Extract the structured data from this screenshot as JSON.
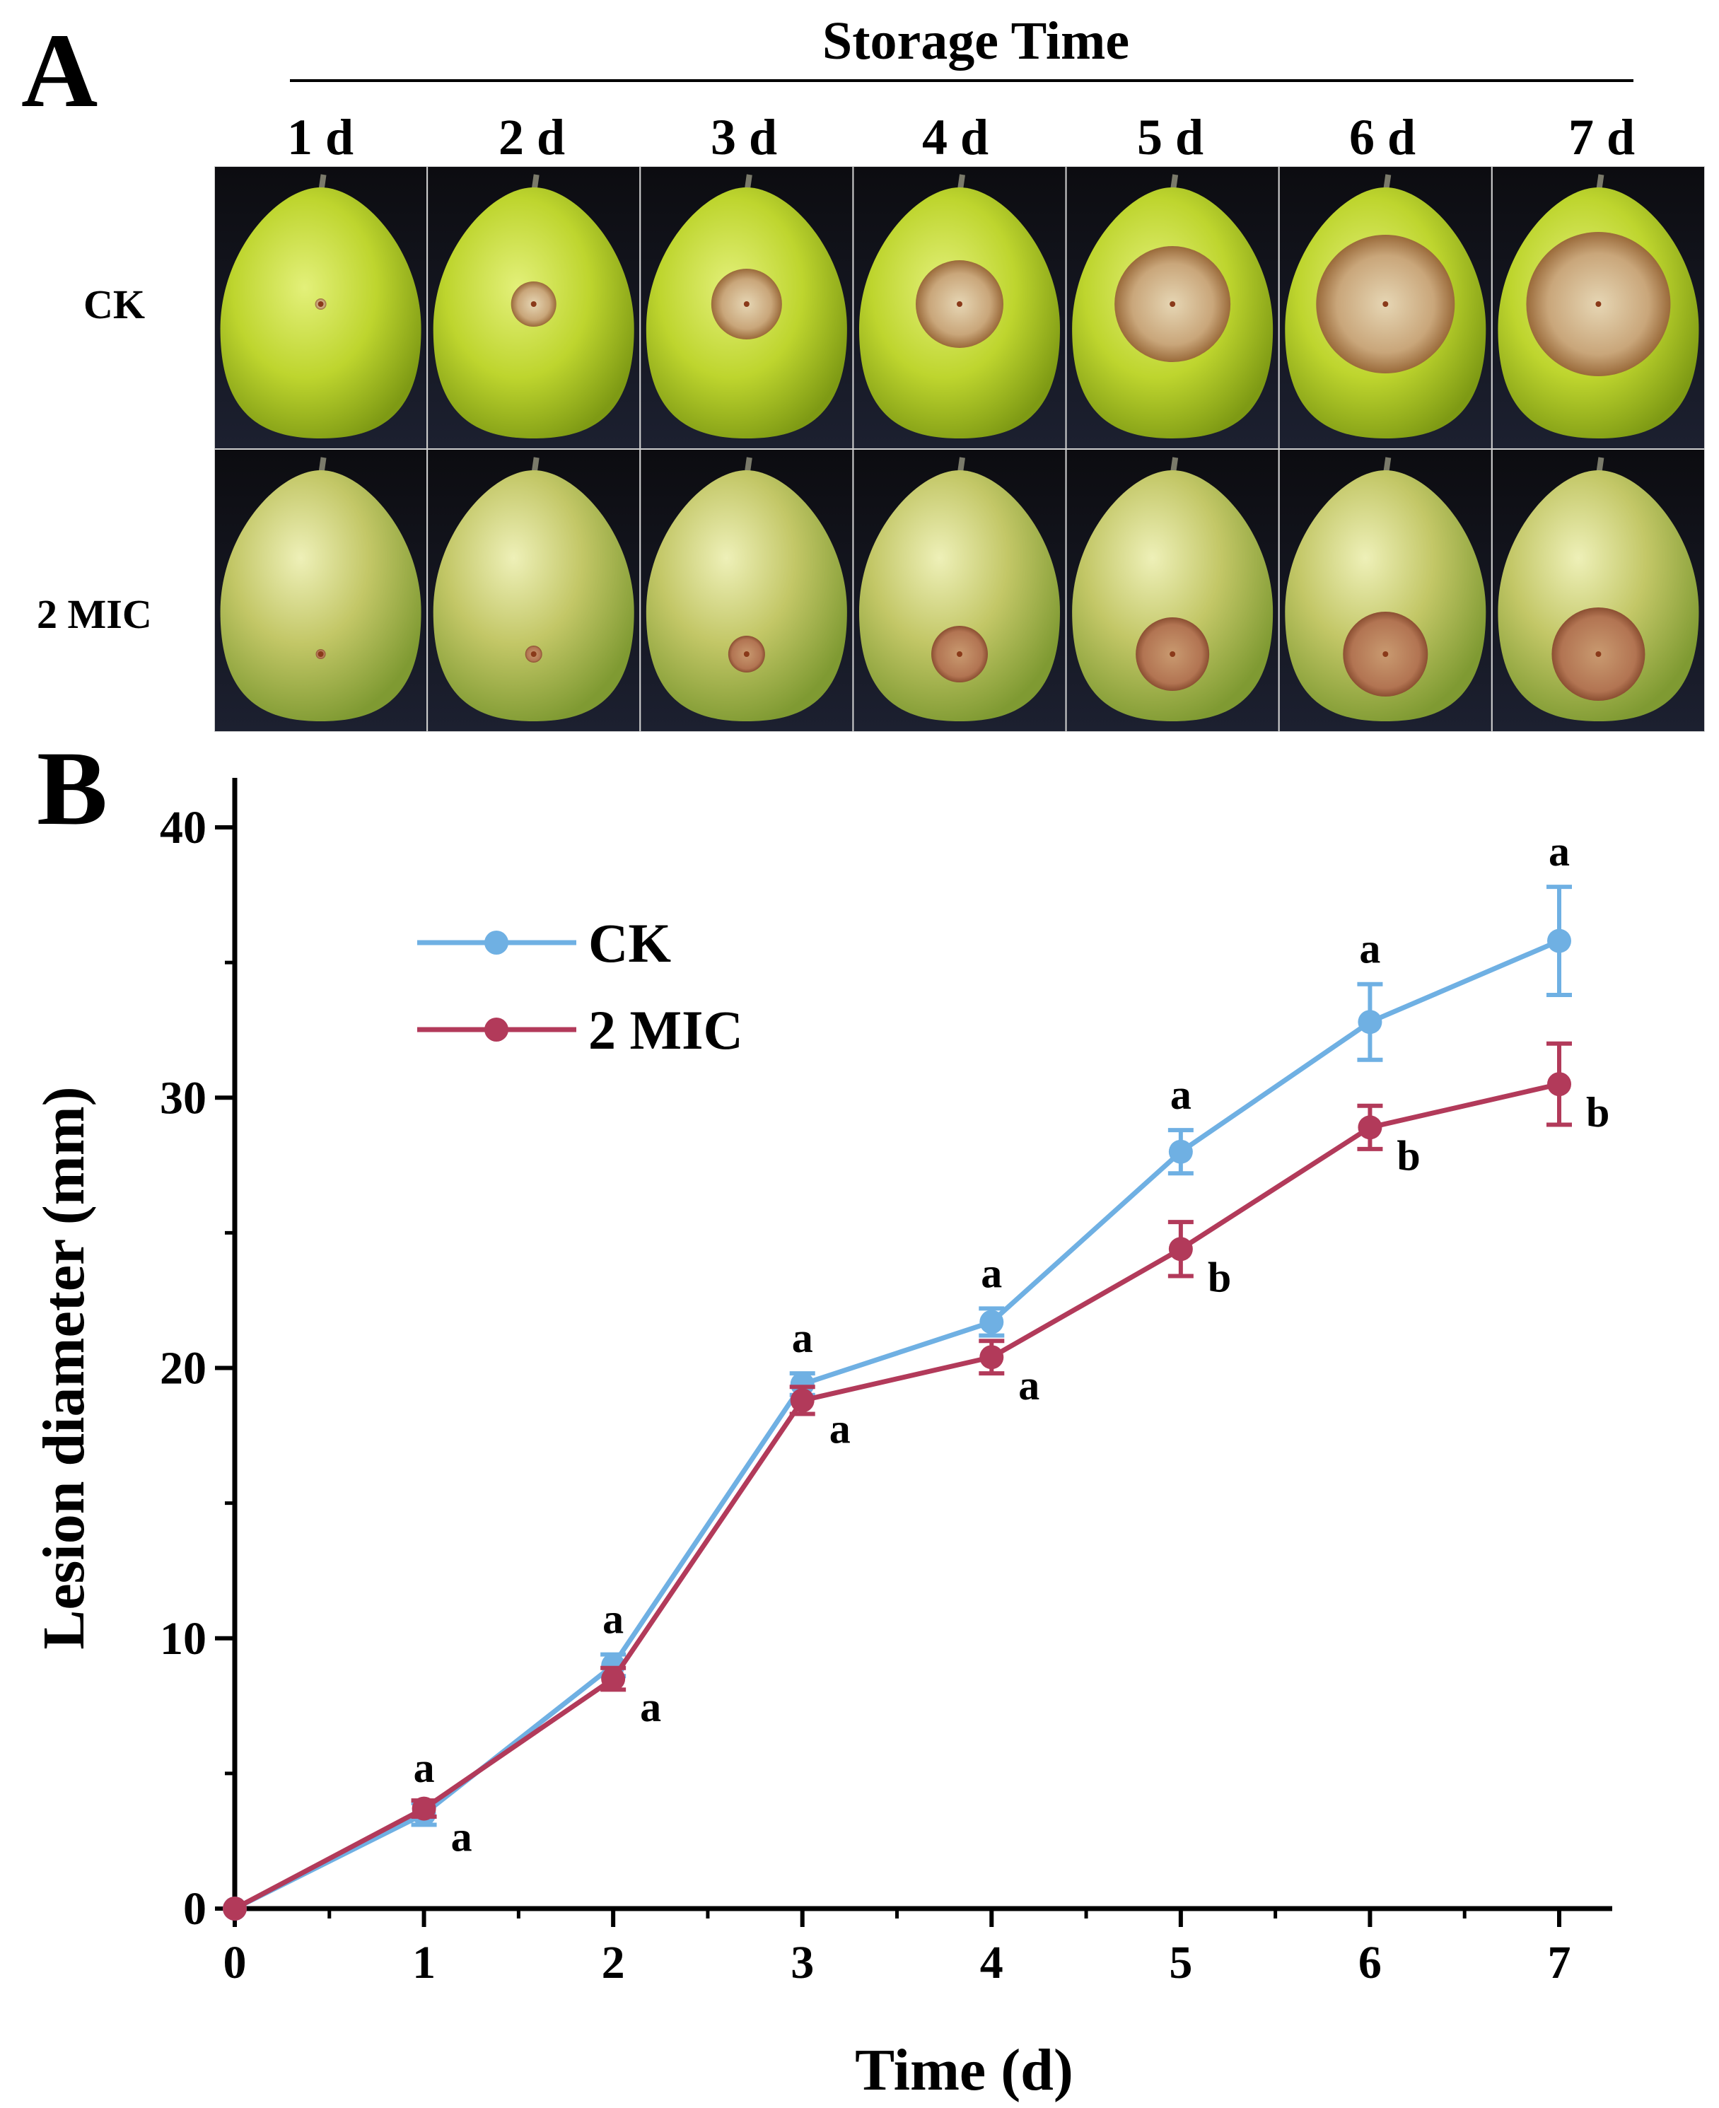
{
  "figure": {
    "panel_a_label": "A",
    "panel_b_label": "B",
    "storage_time_title": "Storage Time",
    "day_labels": [
      "1 d",
      "2 d",
      "3 d",
      "4 d",
      "5 d",
      "6 d",
      "7 d"
    ],
    "row_labels": [
      "CK",
      "2 MIC"
    ]
  },
  "chart_data": {
    "type": "line",
    "xlabel": "Time (d)",
    "ylabel": "Lesion diameter (mm)",
    "x": [
      0,
      1,
      2,
      3,
      4,
      5,
      6,
      7
    ],
    "xlim": [
      0,
      7
    ],
    "ylim": [
      0,
      40
    ],
    "xticks": [
      "0",
      "1",
      "2",
      "3",
      "4",
      "5",
      "6",
      "7"
    ],
    "yticks": [
      "0",
      "10",
      "20",
      "30",
      "40"
    ],
    "legend_position": "top-left",
    "series": [
      {
        "name": "CK",
        "color": "#6fb0e3",
        "marker": "circle",
        "values": [
          0,
          3.5,
          9.0,
          19.4,
          21.7,
          28.0,
          32.8,
          35.8
        ],
        "errors": [
          0,
          0.4,
          0.4,
          0.4,
          0.5,
          0.8,
          1.4,
          2.0
        ],
        "labels": [
          "",
          "a",
          "a",
          "a",
          "a",
          "a",
          "a",
          "a"
        ]
      },
      {
        "name": "2 MIC",
        "color": "#b23a5a",
        "marker": "circle",
        "values": [
          0,
          3.7,
          8.5,
          18.8,
          20.4,
          24.4,
          28.9,
          30.5
        ],
        "errors": [
          0,
          0.3,
          0.4,
          0.5,
          0.6,
          1.0,
          0.8,
          1.5
        ],
        "labels": [
          "",
          "a",
          "a",
          "a",
          "a",
          "b",
          "b",
          "b"
        ]
      }
    ]
  }
}
